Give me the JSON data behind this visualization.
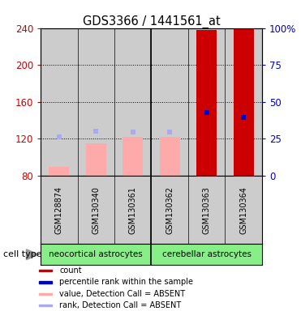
{
  "title": "GDS3366 / 1441561_at",
  "samples": [
    "GSM128874",
    "GSM130340",
    "GSM130361",
    "GSM130362",
    "GSM130363",
    "GSM130364"
  ],
  "ylim_left": [
    80,
    240
  ],
  "ylim_right": [
    0,
    100
  ],
  "yticks_left": [
    80,
    120,
    160,
    200,
    240
  ],
  "yticks_right": [
    0,
    25,
    50,
    75,
    100
  ],
  "yticklabels_right": [
    "0",
    "25",
    "50",
    "75",
    "100%"
  ],
  "bar_values": [
    90,
    115,
    122,
    122,
    238,
    240
  ],
  "bar_colors": [
    "#ffaaaa",
    "#ffaaaa",
    "#ffaaaa",
    "#ffaaaa",
    "#cc0000",
    "#cc0000"
  ],
  "rank_markers": [
    122,
    128,
    127,
    127,
    148,
    143
  ],
  "rank_colors": [
    "#aaaaee",
    "#aaaaee",
    "#aaaaee",
    "#aaaaee",
    "#0000cc",
    "#0000cc"
  ],
  "group1_label": "neocortical astrocytes",
  "group2_label": "cerebellar astrocytes",
  "group_bg_color": "#88ee88",
  "cell_type_label": "cell type",
  "legend_items": [
    {
      "color": "#cc0000",
      "label": "count"
    },
    {
      "color": "#0000cc",
      "label": "percentile rank within the sample"
    },
    {
      "color": "#ffaaaa",
      "label": "value, Detection Call = ABSENT"
    },
    {
      "color": "#aaaaee",
      "label": "rank, Detection Call = ABSENT"
    }
  ],
  "plot_bg_color": "#ffffff",
  "col_bg_color": "#cccccc",
  "left_axis_color": "#cc0000",
  "right_axis_color": "#0000cc"
}
